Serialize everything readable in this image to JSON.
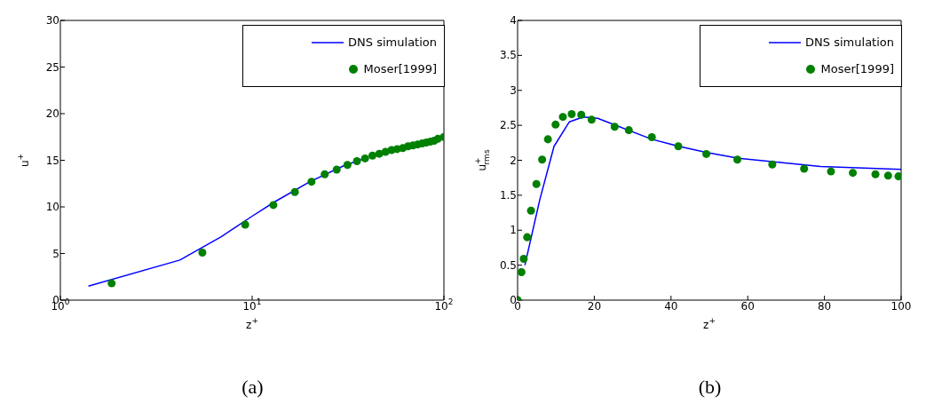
{
  "chart_data": [
    {
      "type": "line",
      "title": "(a)",
      "xlabel": "z$^{+}$",
      "ylabel": "u$^{+}$",
      "log": "x",
      "xlim": [
        1,
        100
      ],
      "xticks": [
        {
          "value": 1,
          "label": "10$^{0}$"
        },
        {
          "value": 10,
          "label": "10$^{1}$"
        },
        {
          "value": 100,
          "label": "10$^{2}$"
        }
      ],
      "ylim": [
        0,
        30
      ],
      "yticks": [
        0,
        5,
        10,
        15,
        20,
        25,
        30
      ],
      "grid": false,
      "legend": "top right",
      "series": [
        {
          "name": "DNS simulation",
          "color": "#0000ff",
          "marker": "none",
          "line_style": "solid",
          "x": [
            1.4,
            4.2,
            6.9,
            10,
            13,
            20,
            30,
            40
          ],
          "values": [
            1.5,
            4.3,
            6.8,
            9.0,
            10.5,
            12.7,
            14.4,
            15.3
          ]
        },
        {
          "name": "Moser[1999]",
          "type": "scatter",
          "color": "#008000",
          "marker": "circle",
          "x": [
            1.85,
            5.5,
            9.2,
            12.9,
            16.7,
            20.4,
            23.9,
            27.6,
            31.4,
            35.2,
            38.8,
            42.4,
            46,
            49.6,
            53.3,
            57,
            61,
            65,
            69,
            73,
            77,
            81,
            85,
            89,
            93,
            100
          ],
          "values": [
            1.8,
            5.1,
            8.1,
            10.2,
            11.6,
            12.7,
            13.5,
            14.0,
            14.5,
            14.9,
            15.2,
            15.5,
            15.7,
            15.9,
            16.1,
            16.2,
            16.3,
            16.5,
            16.6,
            16.7,
            16.8,
            16.9,
            17.0,
            17.1,
            17.3,
            17.5
          ]
        }
      ]
    },
    {
      "type": "line",
      "title": "(b)",
      "xlabel": "z$^{+}$",
      "ylabel": "u$^{+}$$_{rms}$",
      "xlim": [
        0,
        100
      ],
      "xticks": [
        0,
        20,
        40,
        60,
        80,
        100
      ],
      "ylim": [
        0,
        4
      ],
      "yticks": [
        0,
        0.5,
        1,
        1.5,
        2,
        2.5,
        3,
        3.5,
        4
      ],
      "grid": false,
      "legend": "top right",
      "series": [
        {
          "name": "DNS simulation",
          "color": "#0000ff",
          "marker": "none",
          "line_style": "solid",
          "x": [
            1.9,
            5.8,
            9.5,
            13.5,
            17.1,
            20.9,
            35,
            42,
            49.3,
            57.6,
            68,
            79,
            100
          ],
          "values": [
            0.5,
            1.44,
            2.2,
            2.55,
            2.62,
            2.6,
            2.3,
            2.2,
            2.11,
            2.03,
            1.97,
            1.91,
            1.87
          ]
        },
        {
          "name": "Moser[1999]",
          "type": "scatter",
          "color": "#008000",
          "marker": "circle",
          "x": [
            0,
            1.0,
            1.6,
            2.5,
            3.5,
            4.9,
            6.4,
            7.9,
            9.9,
            11.8,
            14.1,
            16.6,
            19.3,
            25.3,
            29,
            35,
            41.9,
            49.2,
            57.3,
            66.4,
            74.7,
            81.7,
            87.4,
            93.3,
            96.6,
            99.3
          ],
          "values": [
            0,
            0.4,
            0.59,
            0.9,
            1.28,
            1.66,
            2.01,
            2.3,
            2.51,
            2.62,
            2.66,
            2.65,
            2.58,
            2.48,
            2.43,
            2.33,
            2.2,
            2.09,
            2.01,
            1.94,
            1.88,
            1.84,
            1.82,
            1.8,
            1.78,
            1.77
          ]
        }
      ]
    }
  ]
}
